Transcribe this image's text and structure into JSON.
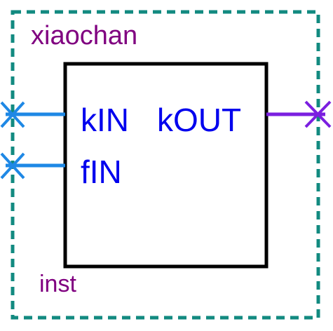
{
  "symbol": {
    "instance_name": "xiaochan",
    "instance_label": "inst",
    "ports": {
      "inputs": [
        {
          "name": "kIN"
        },
        {
          "name": "fIN"
        }
      ],
      "outputs": [
        {
          "name": "kOUT"
        }
      ]
    },
    "colors": {
      "frame": "#128a80",
      "body_border": "#000000",
      "instance_text": "#800080",
      "port_text": "#0000ee",
      "input_wire": "#1e88e5",
      "output_wire": "#7b1fe0"
    }
  }
}
